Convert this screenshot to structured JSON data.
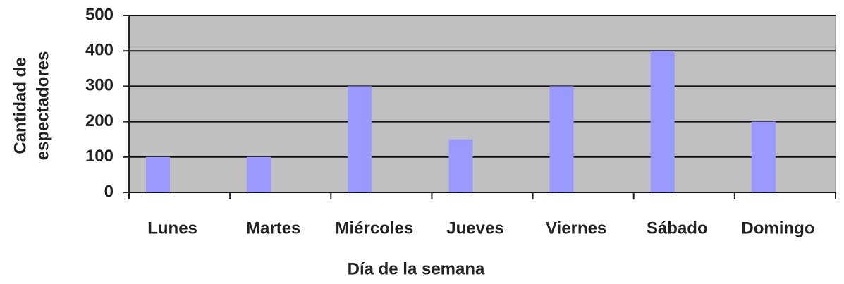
{
  "chart_data": {
    "type": "bar",
    "xlabel": "Día de la semana",
    "ylabel": [
      "Cantidad de",
      "espectadores"
    ],
    "categories": [
      "Lunes",
      "Martes",
      "Miércoles",
      "Jueves",
      "Viernes",
      "Sábado",
      "Domingo"
    ],
    "values": [
      100,
      100,
      300,
      150,
      300,
      400,
      200
    ],
    "color": "#9999ff",
    "ylim": [
      0,
      500
    ],
    "yticks": [
      0,
      100,
      200,
      300,
      400,
      500
    ],
    "grid": true
  }
}
